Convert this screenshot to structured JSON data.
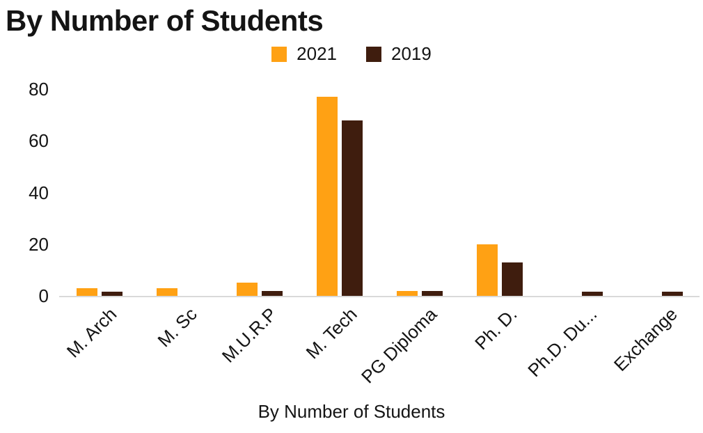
{
  "title": "By Number of Students",
  "axis_title": "By Number of Students",
  "colors": {
    "series_2021": "#FFA114",
    "series_2019": "#3F1D0E",
    "axis_line": "#d9d9d9"
  },
  "chart_data": {
    "type": "bar",
    "title": "By Number of Students",
    "categories": [
      "M. Arch",
      "M. Sc",
      "M.U.R.P",
      "M. Tech",
      "PG Diploma",
      "Ph. D.",
      "Ph.D. Du...",
      "Exchange"
    ],
    "series": [
      {
        "name": "2021",
        "color": "#FFA114",
        "values": [
          3,
          3,
          5,
          77,
          2,
          20,
          0,
          0
        ]
      },
      {
        "name": "2019",
        "color": "#3F1D0E",
        "values": [
          1.5,
          0,
          2,
          68,
          2,
          13,
          1.5,
          1.5
        ]
      }
    ],
    "xlabel": "By Number of Students",
    "ylabel": "",
    "ylim": [
      0,
      80
    ],
    "yticks": [
      0,
      20,
      40,
      60,
      80
    ],
    "grid": false,
    "legend_position": "top"
  }
}
